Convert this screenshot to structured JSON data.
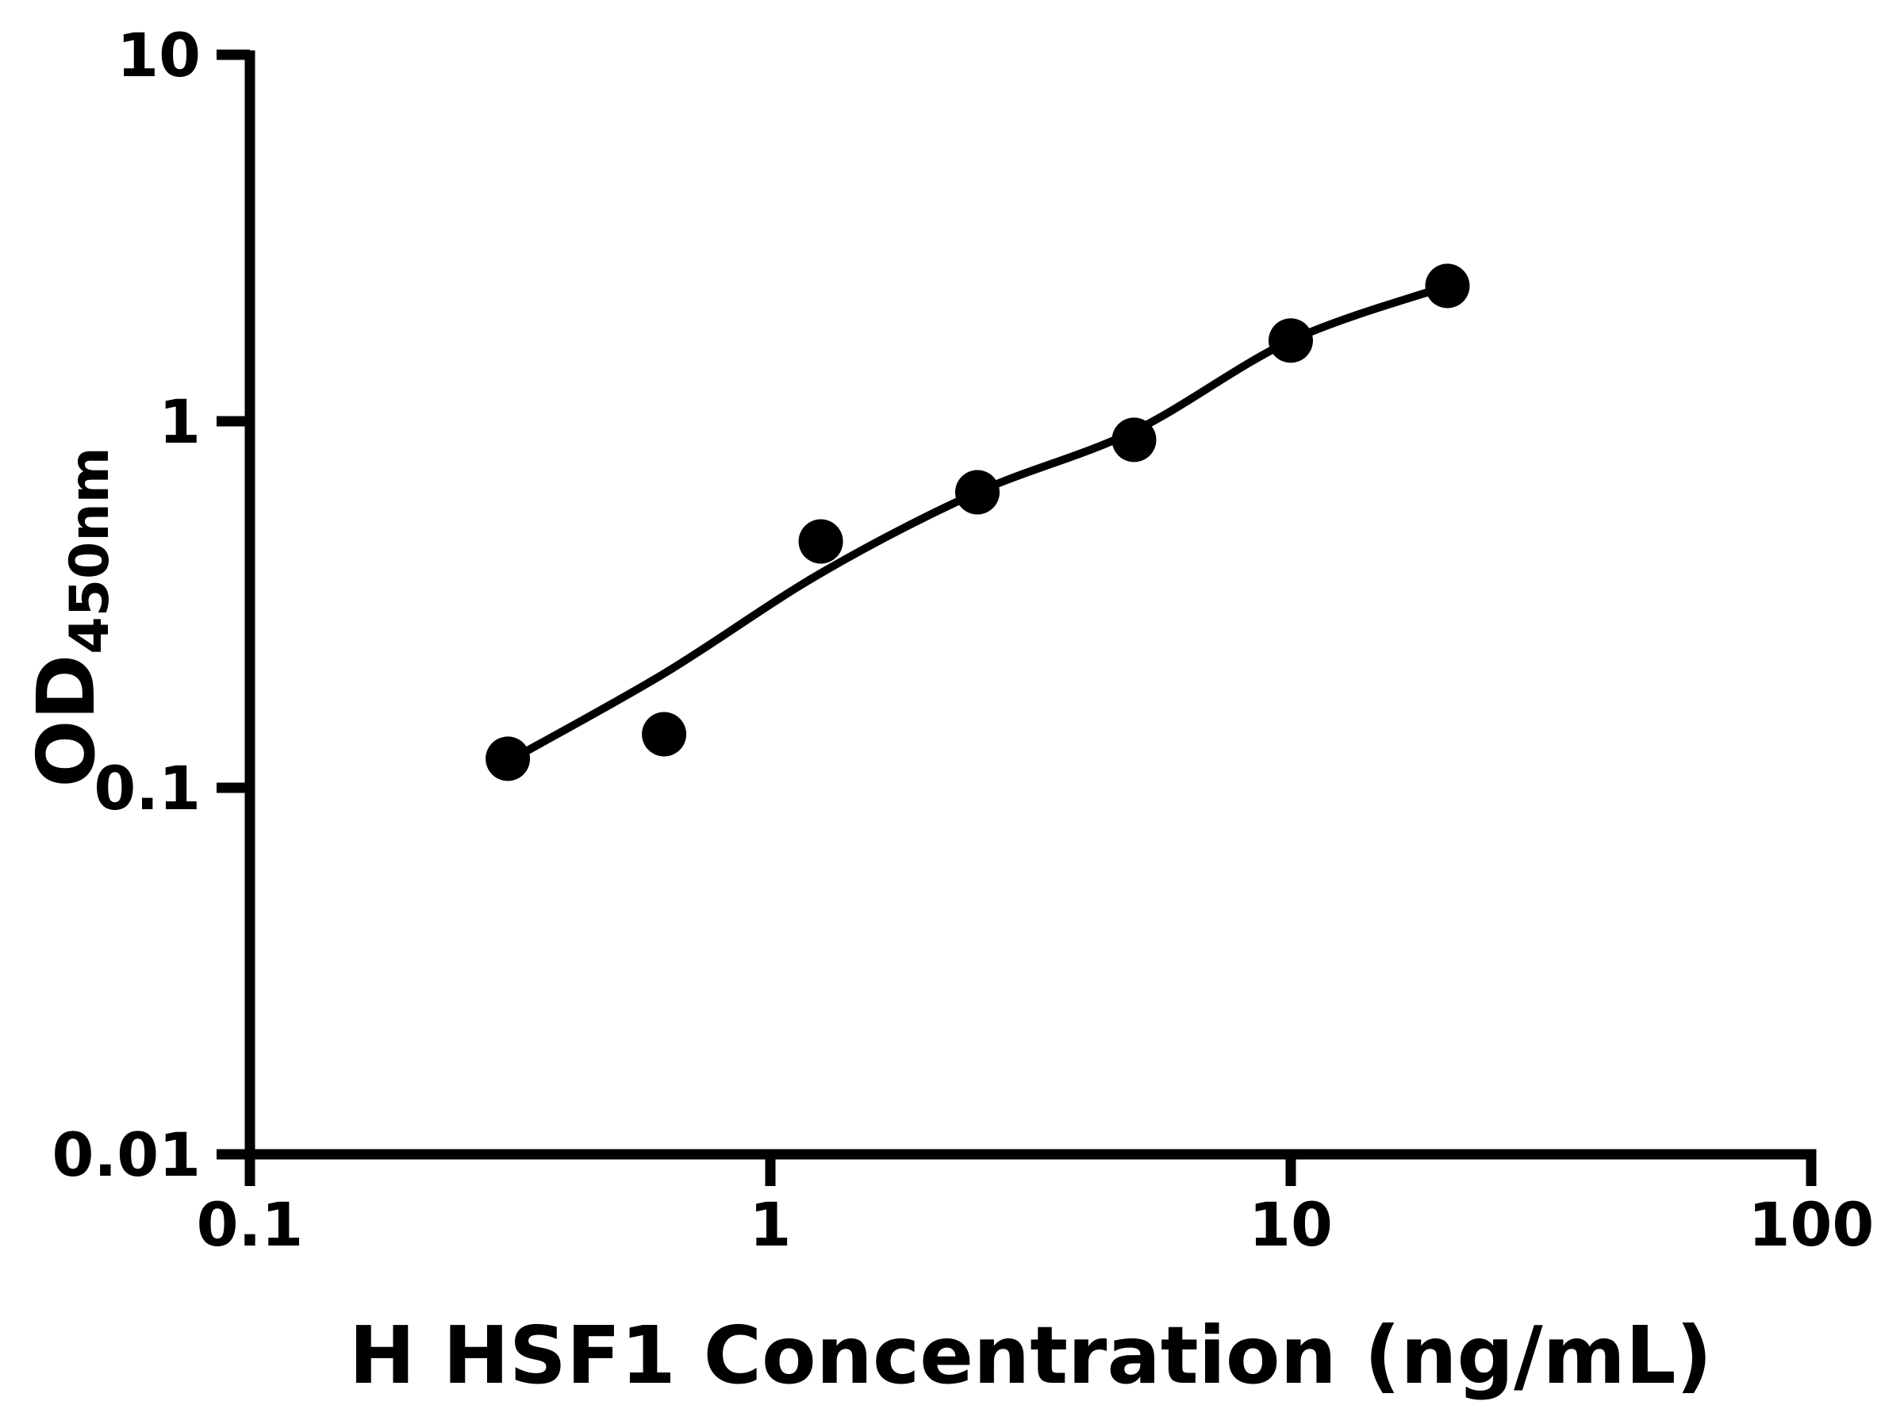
{
  "style": {
    "background": "#ffffff",
    "ink": "#000000"
  },
  "chart_data": {
    "type": "scatter",
    "title": "",
    "xlabel": "H HSF1 Concentration (ng/mL)",
    "ylabel": "OD",
    "ylabel_subscript": "450nm",
    "x_scale": "log",
    "y_scale": "log",
    "xlim": [
      0.1,
      100
    ],
    "ylim": [
      0.01,
      10
    ],
    "grid": false,
    "legend": "none",
    "x_ticks": [
      {
        "value": 0.1,
        "label": "0.1"
      },
      {
        "value": 1,
        "label": "1"
      },
      {
        "value": 10,
        "label": "10"
      },
      {
        "value": 100,
        "label": "100"
      }
    ],
    "y_ticks": [
      {
        "value": 0.01,
        "label": "0.01"
      },
      {
        "value": 0.1,
        "label": "0.1"
      },
      {
        "value": 1,
        "label": "1"
      },
      {
        "value": 10,
        "label": "10"
      }
    ],
    "series": [
      {
        "name": "standard-curve-points",
        "marker": "filled-circle",
        "points": [
          {
            "x": 0.313,
            "y": 0.12
          },
          {
            "x": 0.625,
            "y": 0.14
          },
          {
            "x": 1.25,
            "y": 0.47
          },
          {
            "x": 2.5,
            "y": 0.64
          },
          {
            "x": 5,
            "y": 0.89
          },
          {
            "x": 10,
            "y": 1.66
          },
          {
            "x": 20,
            "y": 2.34
          }
        ]
      }
    ],
    "fit_curve": {
      "name": "four-parameter-logistic-fit",
      "points": [
        [
          0.313,
          0.118
        ],
        [
          0.625,
          0.205
        ],
        [
          1.25,
          0.385
        ],
        [
          2.5,
          0.64
        ],
        [
          5,
          0.94
        ],
        [
          10,
          1.66
        ],
        [
          20,
          2.34
        ]
      ]
    }
  }
}
